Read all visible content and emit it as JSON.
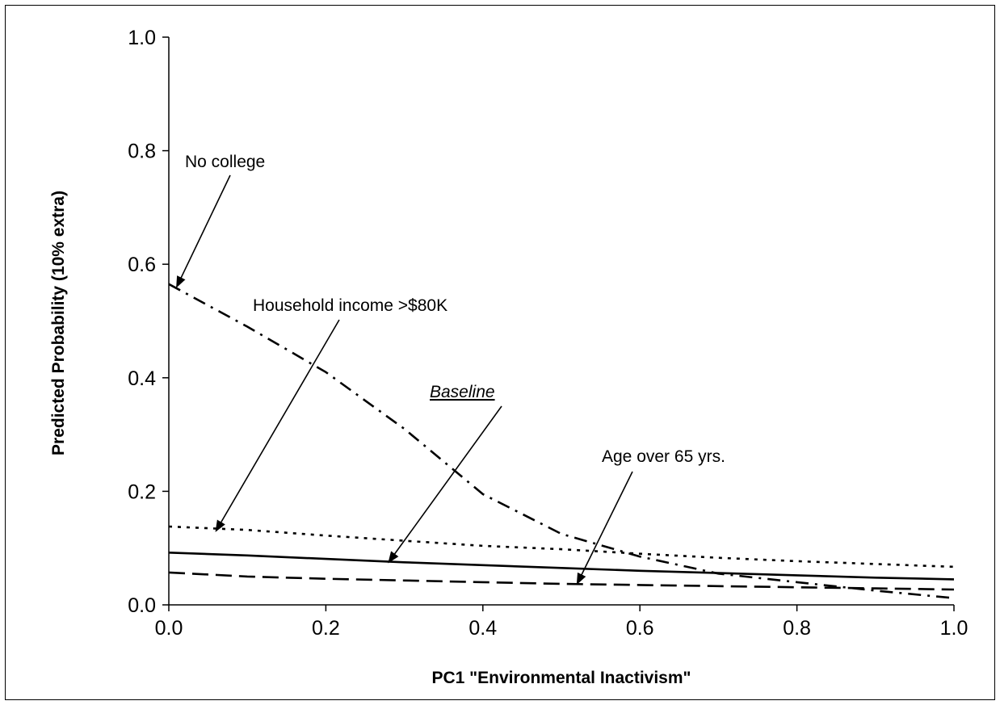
{
  "chart_data": {
    "type": "line",
    "title": "",
    "xlabel": "PC1 \"Environmental Inactivism\"",
    "ylabel": "Predicted Probability (10% extra)",
    "xlim": [
      0.0,
      1.0
    ],
    "ylim": [
      0.0,
      1.0
    ],
    "xticks": [
      "0.0",
      "0.2",
      "0.4",
      "0.6",
      "0.8",
      "1.0"
    ],
    "yticks": [
      "0.0",
      "0.2",
      "0.4",
      "0.6",
      "0.8",
      "1.0"
    ],
    "grid": false,
    "x": [
      0.0,
      0.1,
      0.2,
      0.3,
      0.4,
      0.5,
      0.6,
      0.7,
      0.8,
      0.9,
      1.0
    ],
    "series": [
      {
        "label": "Baseline",
        "style": "solid",
        "values": [
          0.092,
          0.087,
          0.081,
          0.075,
          0.07,
          0.065,
          0.06,
          0.056,
          0.052,
          0.048,
          0.045
        ]
      },
      {
        "label": "No college",
        "style": "dash-dot",
        "values": [
          0.565,
          0.49,
          0.41,
          0.31,
          0.195,
          0.125,
          0.085,
          0.055,
          0.04,
          0.025,
          0.012
        ]
      },
      {
        "label": "Household income >$80K",
        "style": "dotted",
        "values": [
          0.138,
          0.132,
          0.122,
          0.113,
          0.104,
          0.098,
          0.09,
          0.083,
          0.077,
          0.072,
          0.067
        ]
      },
      {
        "label": "Age over 65 yrs.",
        "style": "dashed",
        "values": [
          0.057,
          0.05,
          0.046,
          0.043,
          0.04,
          0.037,
          0.035,
          0.033,
          0.031,
          0.029,
          0.027
        ]
      }
    ],
    "annotations": [
      {
        "text": "No college",
        "points_to": [
          0.01,
          0.56
        ]
      },
      {
        "text": "Household income >$80K",
        "points_to": [
          0.06,
          0.13
        ]
      },
      {
        "text": "Baseline",
        "points_to": [
          0.28,
          0.075
        ]
      },
      {
        "text": "Age over 65 yrs.",
        "points_to": [
          0.52,
          0.037
        ]
      }
    ]
  }
}
